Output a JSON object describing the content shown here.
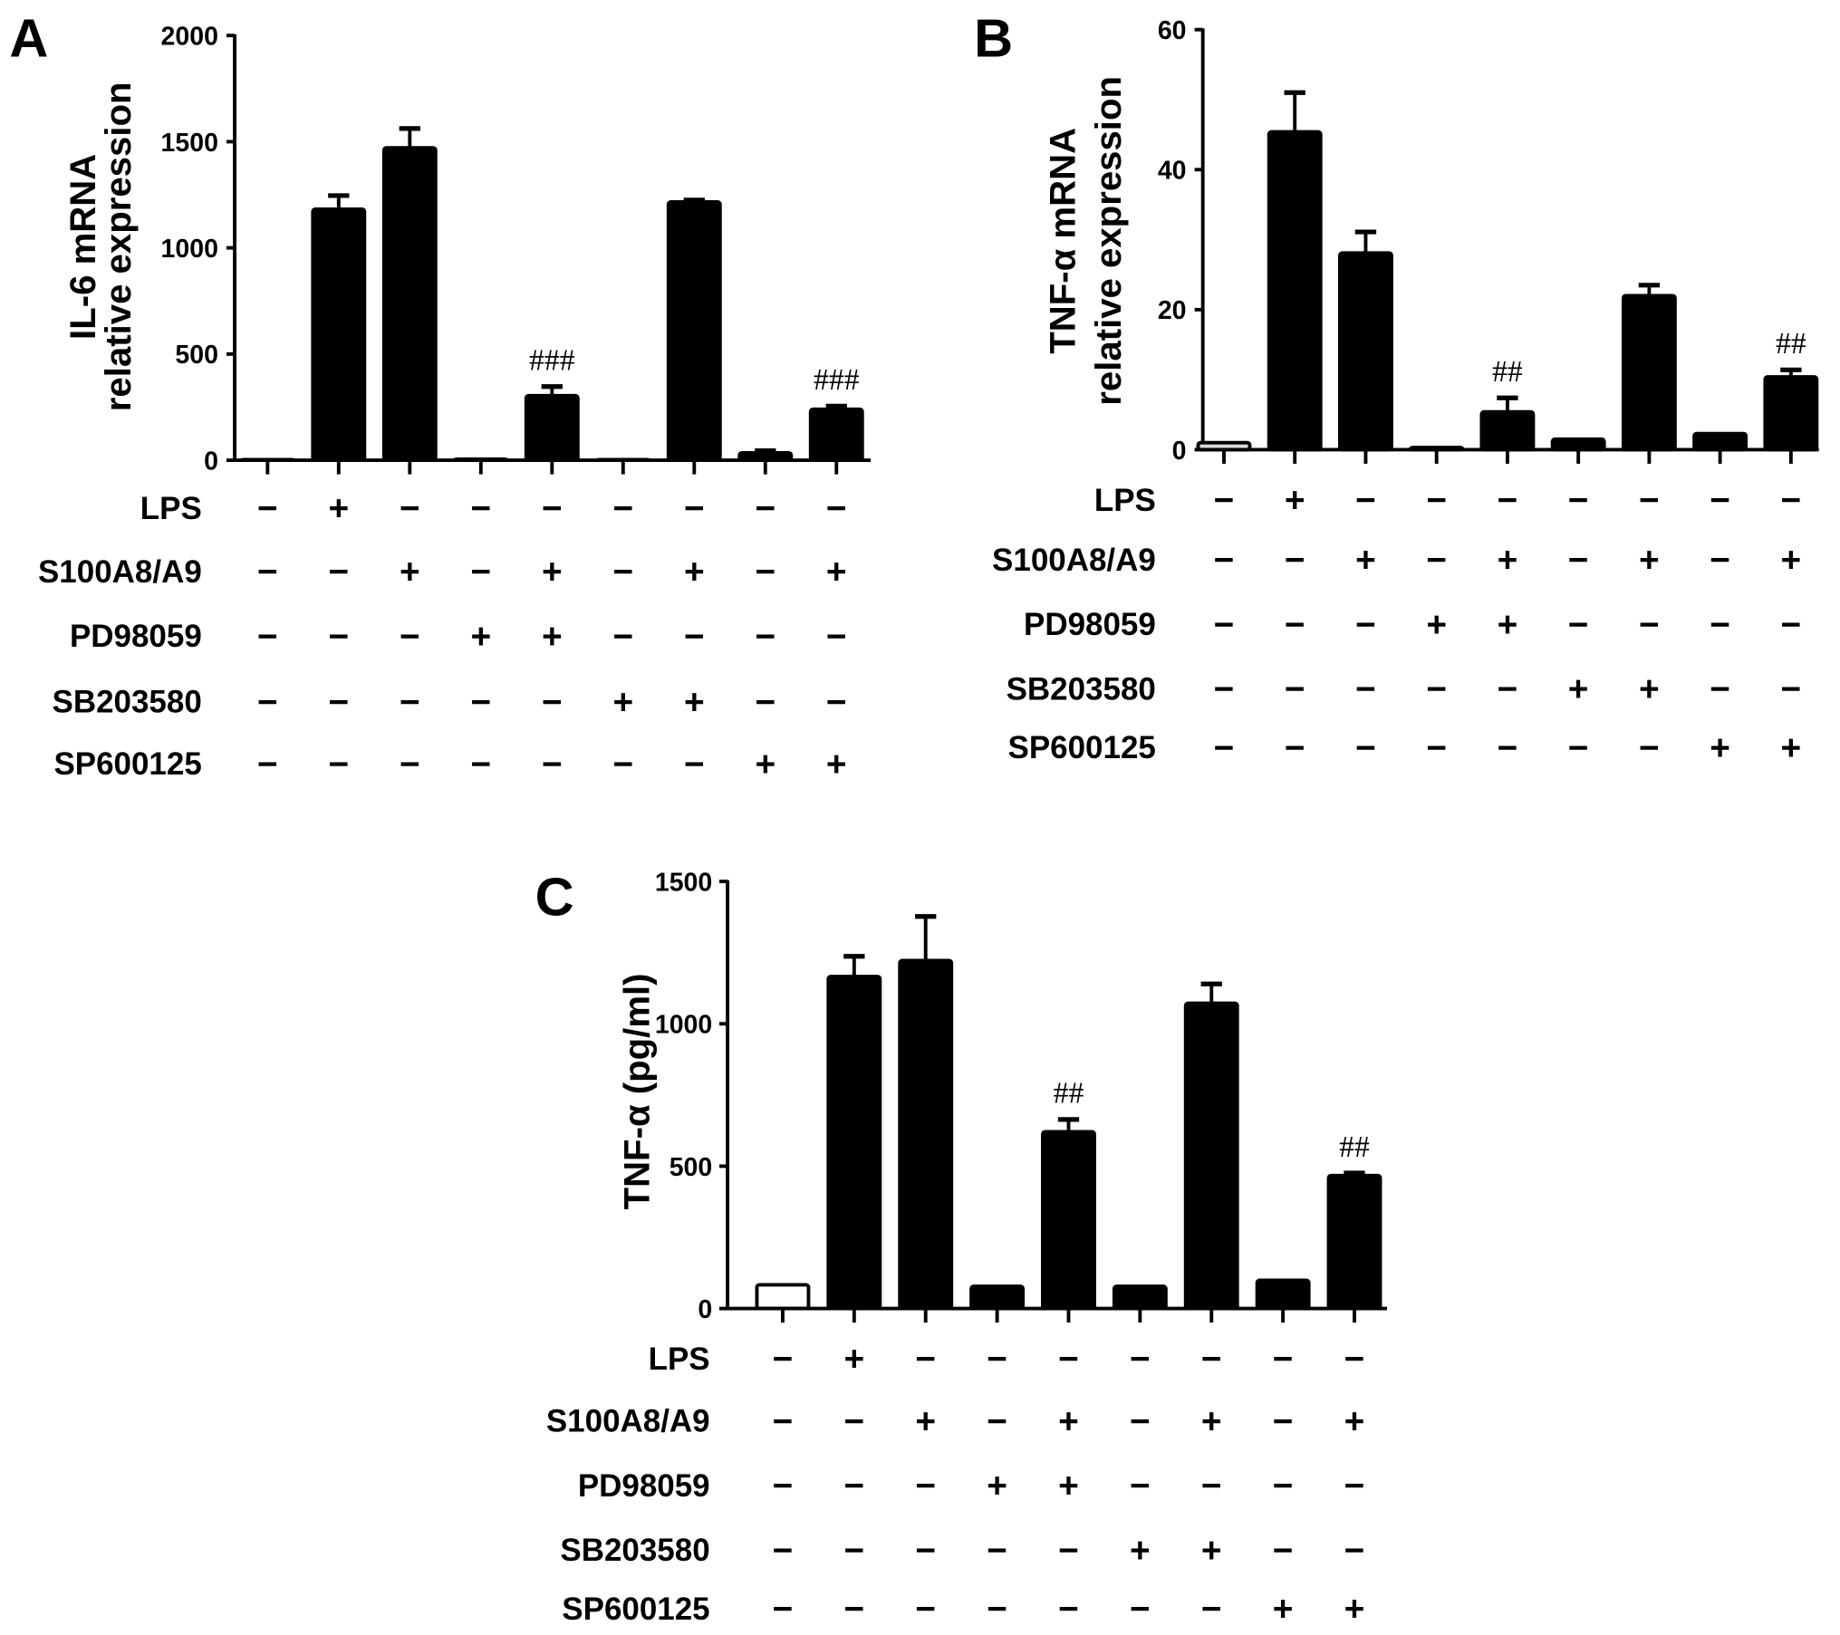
{
  "chart_data": [
    {
      "type": "bar",
      "panel_label": "A",
      "ylabel": [
        "IL-6 mRNA",
        "relative expression"
      ],
      "ylim": [
        0,
        2000
      ],
      "yticks": [
        "0",
        "500",
        "1000",
        "1500",
        "2000"
      ],
      "ytick_values": [
        0,
        500,
        1000,
        1500,
        2000
      ],
      "values": [
        0,
        1182,
        1471,
        5,
        304,
        3,
        1216,
        35,
        240
      ],
      "errors": [
        0,
        64,
        91,
        0,
        43,
        0,
        9,
        10,
        15
      ],
      "bar_colors": [
        "#ffffff",
        "#000000",
        "#000000",
        "#000000",
        "#000000",
        "#000000",
        "#000000",
        "#000000",
        "#000000"
      ],
      "annotations": [
        "",
        "",
        "",
        "",
        "###",
        "",
        "",
        "",
        "###"
      ],
      "treatments": [
        {
          "name": "LPS",
          "signs": [
            "−",
            "+",
            "−",
            "−",
            "−",
            "−",
            "−",
            "−",
            "−"
          ]
        },
        {
          "name": "S100A8/A9",
          "signs": [
            "−",
            "−",
            "+",
            "−",
            "+",
            "−",
            "+",
            "−",
            "+"
          ]
        },
        {
          "name": "PD98059",
          "signs": [
            "−",
            "−",
            "−",
            "+",
            "+",
            "−",
            "−",
            "−",
            "−"
          ]
        },
        {
          "name": "SB203580",
          "signs": [
            "−",
            "−",
            "−",
            "−",
            "−",
            "+",
            "+",
            "−",
            "−"
          ]
        },
        {
          "name": "SP600125",
          "signs": [
            "−",
            "−",
            "−",
            "−",
            "−",
            "−",
            "−",
            "+",
            "+"
          ]
        }
      ]
    },
    {
      "type": "bar",
      "panel_label": "B",
      "ylabel": [
        "TNF-α  mRNA",
        "relative expression"
      ],
      "ylim": [
        0,
        60
      ],
      "yticks": [
        "0",
        "20",
        "40",
        "60"
      ],
      "ytick_values": [
        0,
        20,
        40,
        60
      ],
      "values": [
        1.0,
        45.4,
        28.1,
        0.3,
        5.4,
        1.5,
        22.0,
        2.3,
        10.4
      ],
      "errors": [
        0,
        5.6,
        3.0,
        0,
        2.0,
        0,
        1.5,
        0,
        1.0
      ],
      "bar_colors": [
        "#d8d8d8",
        "#000000",
        "#000000",
        "#000000",
        "#000000",
        "#000000",
        "#000000",
        "#000000",
        "#000000"
      ],
      "annotations": [
        "",
        "",
        "",
        "",
        "##",
        "",
        "",
        "",
        "##"
      ],
      "treatments": [
        {
          "name": "LPS",
          "signs": [
            "−",
            "+",
            "−",
            "−",
            "−",
            "−",
            "−",
            "−",
            "−"
          ]
        },
        {
          "name": "S100A8/A9",
          "signs": [
            "−",
            "−",
            "+",
            "−",
            "+",
            "−",
            "+",
            "−",
            "+"
          ]
        },
        {
          "name": "PD98059",
          "signs": [
            "−",
            "−",
            "−",
            "+",
            "+",
            "−",
            "−",
            "−",
            "−"
          ]
        },
        {
          "name": "SB203580",
          "signs": [
            "−",
            "−",
            "−",
            "−",
            "−",
            "+",
            "+",
            "−",
            "−"
          ]
        },
        {
          "name": "SP600125",
          "signs": [
            "−",
            "−",
            "−",
            "−",
            "−",
            "−",
            "−",
            "+",
            "+"
          ]
        }
      ]
    },
    {
      "type": "bar",
      "panel_label": "C",
      "ylabel": [
        "TNF-α  (pg/ml)"
      ],
      "ylim": [
        0,
        1500
      ],
      "yticks": [
        "0",
        "500",
        "1000",
        "1500"
      ],
      "ytick_values": [
        0,
        500,
        1000,
        1500
      ],
      "values": [
        83,
        1166,
        1222,
        78,
        621,
        78,
        1072,
        99,
        467
      ],
      "errors": [
        0,
        71,
        155,
        0,
        43,
        0,
        68,
        0,
        9
      ],
      "bar_colors": [
        "#ffffff",
        "#000000",
        "#000000",
        "#000000",
        "#000000",
        "#000000",
        "#000000",
        "#000000",
        "#000000"
      ],
      "annotations": [
        "",
        "",
        "",
        "",
        "##",
        "",
        "",
        "",
        "##"
      ],
      "treatments": [
        {
          "name": "LPS",
          "signs": [
            "−",
            "+",
            "−",
            "−",
            "−",
            "−",
            "−",
            "−",
            "−"
          ]
        },
        {
          "name": "S100A8/A9",
          "signs": [
            "−",
            "−",
            "+",
            "−",
            "+",
            "−",
            "+",
            "−",
            "+"
          ]
        },
        {
          "name": "PD98059",
          "signs": [
            "−",
            "−",
            "−",
            "+",
            "+",
            "−",
            "−",
            "−",
            "−"
          ]
        },
        {
          "name": "SB203580",
          "signs": [
            "−",
            "−",
            "−",
            "−",
            "−",
            "+",
            "+",
            "−",
            "−"
          ]
        },
        {
          "name": "SP600125",
          "signs": [
            "−",
            "−",
            "−",
            "−",
            "−",
            "−",
            "−",
            "+",
            "+"
          ]
        }
      ]
    }
  ]
}
